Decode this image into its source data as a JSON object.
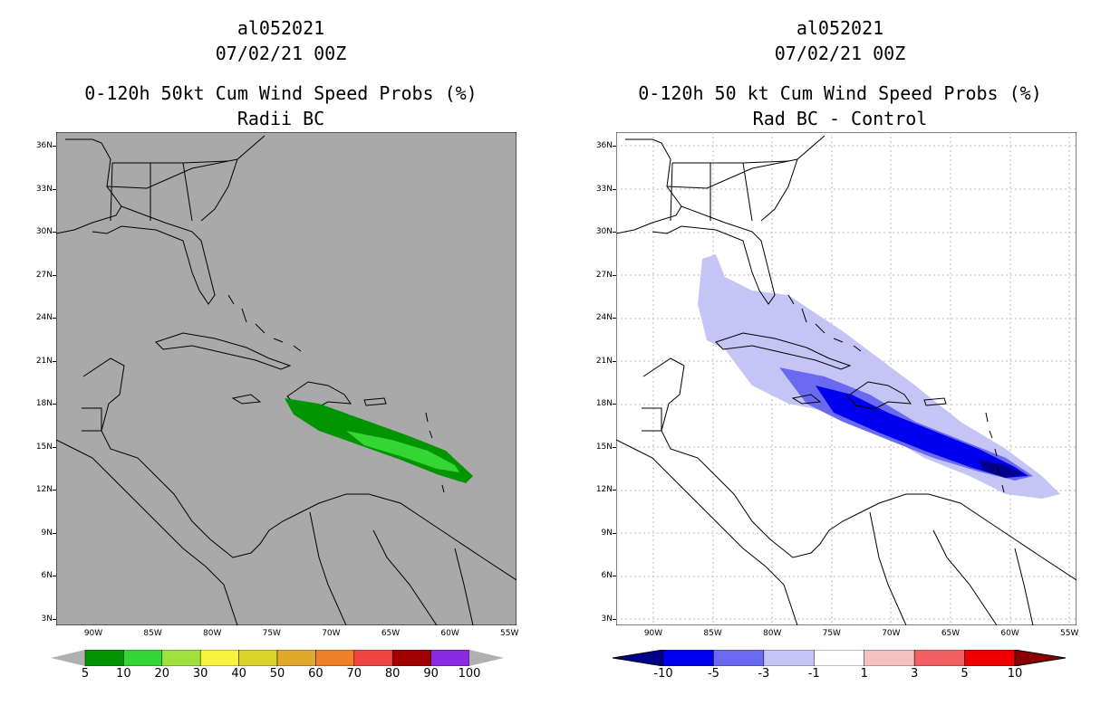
{
  "left_panel": {
    "storm_id": "al052021",
    "datetime": "07/02/21 00Z",
    "title": "0-120h 50kt Cum Wind Speed Probs (%)",
    "subtitle": "Radii BC",
    "background_color": "#a9a9a9",
    "colorbar_labels": [
      "5",
      "10",
      "20",
      "30",
      "40",
      "50",
      "60",
      "70",
      "80",
      "90",
      "100"
    ],
    "colorbar_colors": [
      "#009400",
      "#33d633",
      "#9fe03f",
      "#f7f33f",
      "#d9d32c",
      "#e0a92e",
      "#f08028",
      "#f04545",
      "#a00000",
      "#8a2be2"
    ]
  },
  "right_panel": {
    "storm_id": "al052021",
    "datetime": "07/02/21 00Z",
    "title": "0-120h 50 kt Cum Wind Speed Probs (%)",
    "subtitle": "Rad BC - Control",
    "background_color": "#ffffff",
    "colorbar_labels": [
      "-10",
      "-5",
      "-3",
      "-1",
      "1",
      "3",
      "5",
      "10"
    ],
    "colorbar_colors": [
      "#00008b",
      "#0000ee",
      "#6a6af0",
      "#c5c5f5",
      "#ffffff",
      "#f7c0c0",
      "#f06060",
      "#ee0000",
      "#8b0000"
    ]
  },
  "axes": {
    "lat_labels": [
      "36N",
      "33N",
      "30N",
      "27N",
      "24N",
      "21N",
      "18N",
      "15N",
      "12N",
      "9N",
      "6N",
      "3N"
    ],
    "lon_labels": [
      "90W",
      "85W",
      "80W",
      "75W",
      "70W",
      "65W",
      "60W",
      "55W"
    ]
  }
}
